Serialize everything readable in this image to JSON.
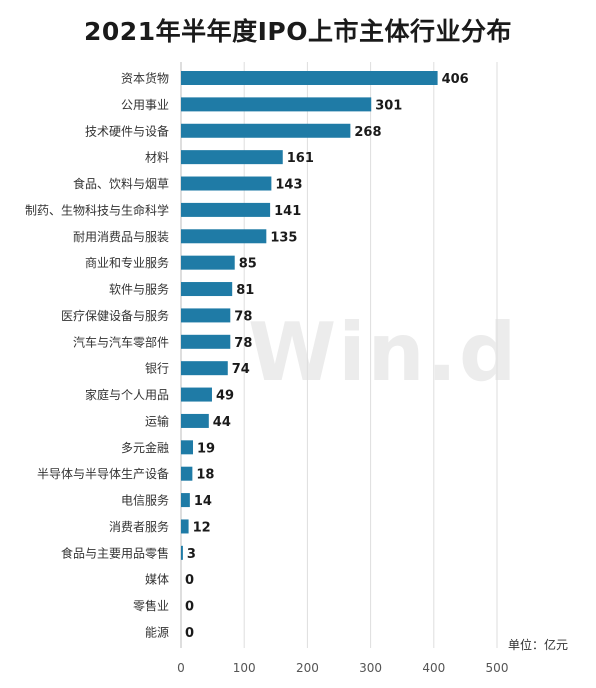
{
  "chart_data": {
    "type": "bar",
    "orientation": "horizontal",
    "title": "2021年半年度IPO上市主体行业分布",
    "unit": "单位：亿元",
    "watermark": "Win.d",
    "categories": [
      "资本货物",
      "公用事业",
      "技术硬件与设备",
      "材料",
      "食品、饮料与烟草",
      "制药、生物科技与生命科学",
      "耐用消费品与服装",
      "商业和专业服务",
      "软件与服务",
      "医疗保健设备与服务",
      "汽车与汽车零部件",
      "银行",
      "家庭与个人用品",
      "运输",
      "多元金融",
      "半导体与半导体生产设备",
      "电信服务",
      "消费者服务",
      "食品与主要用品零售",
      "媒体",
      "零售业",
      "能源"
    ],
    "values": [
      406,
      301,
      268,
      161,
      143,
      141,
      135,
      85,
      81,
      78,
      78,
      74,
      49,
      44,
      19,
      18,
      14,
      12,
      3,
      0,
      0,
      0
    ],
    "xlim": [
      0,
      500
    ],
    "xticks": [
      0,
      100,
      200,
      300,
      400,
      500
    ],
    "grid": true,
    "bar_color": "#1f7ba6"
  }
}
